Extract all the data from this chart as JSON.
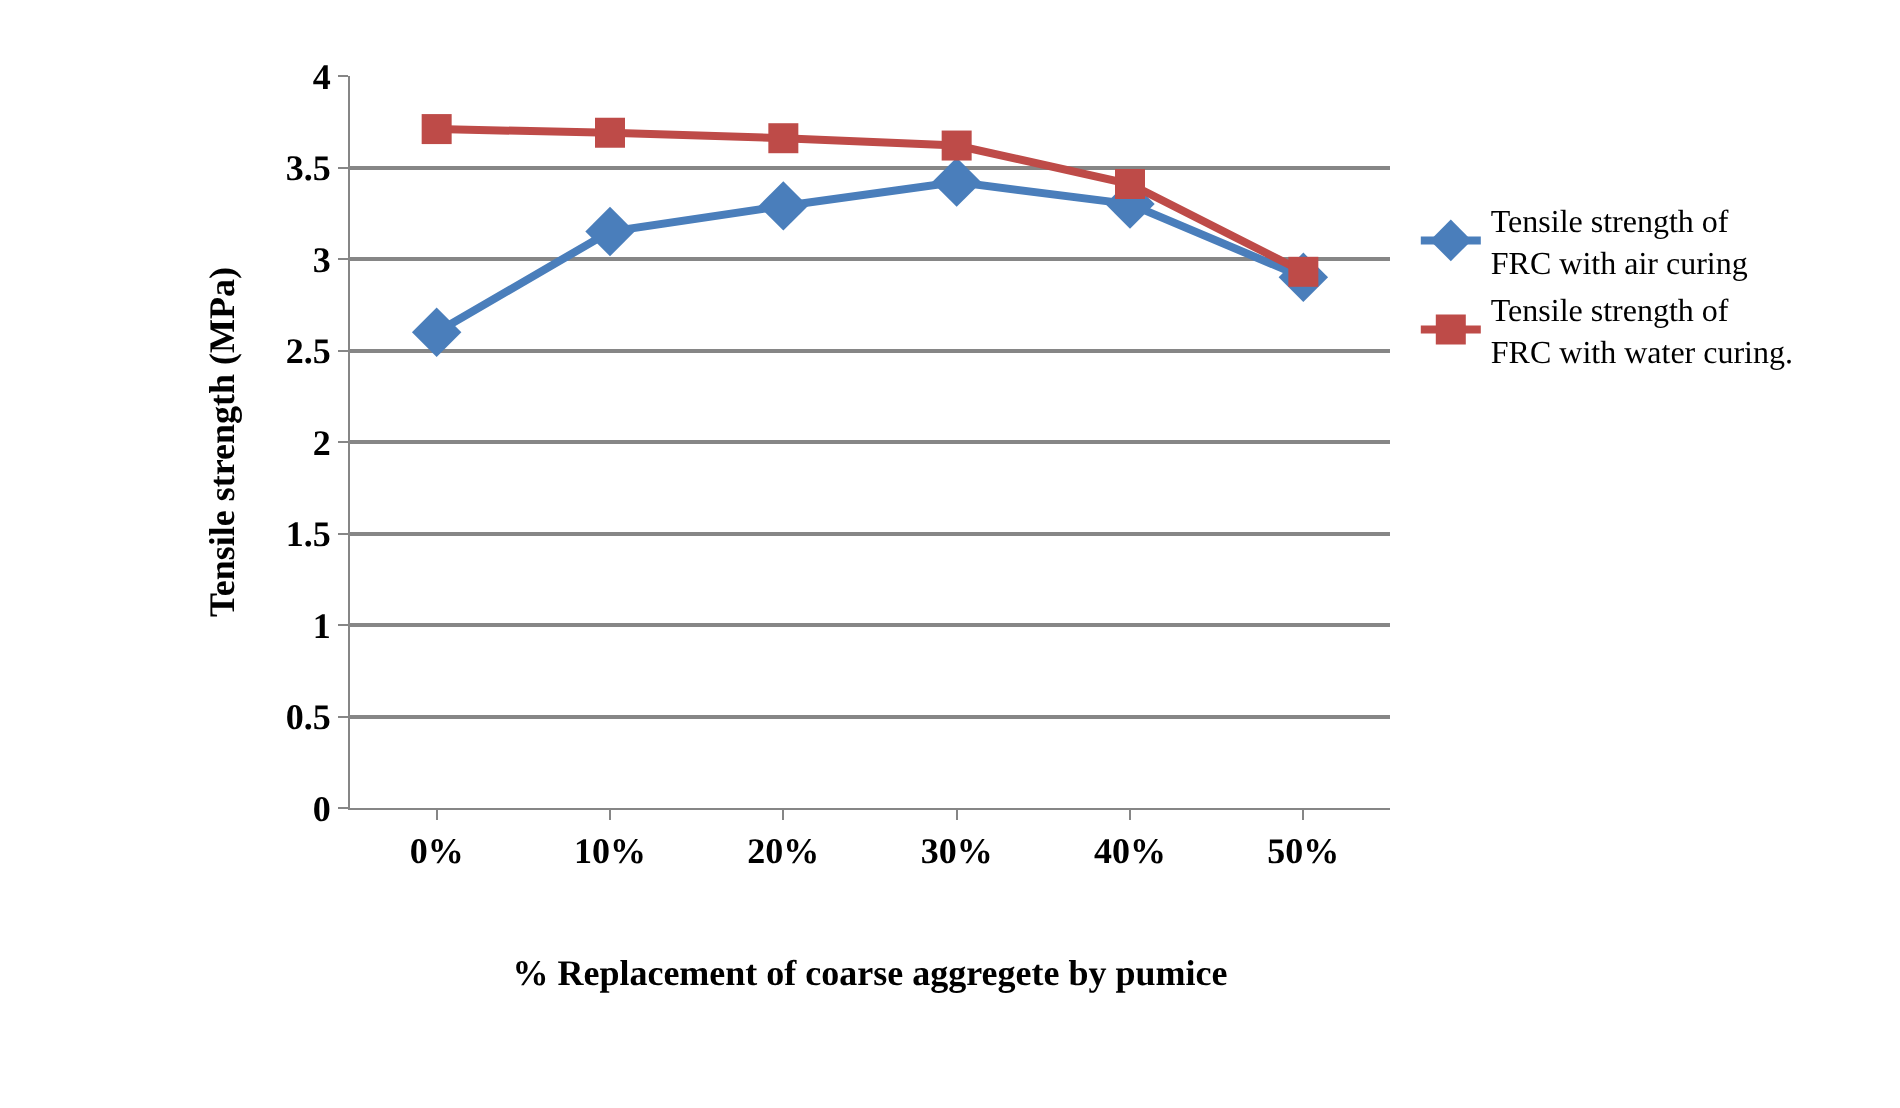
{
  "chart_data": {
    "type": "line",
    "xlabel": "% Replacement of coarse aggregete by pumice",
    "ylabel": "Tensile strength (MPa)",
    "categories": [
      "0%",
      "10%",
      "20%",
      "30%",
      "40%",
      "50%"
    ],
    "series": [
      {
        "name": "Tensile strength of FRC with air curing",
        "color": "#4a7ebb",
        "marker": "diamond",
        "values": [
          2.6,
          3.15,
          3.29,
          3.42,
          3.3,
          2.9
        ]
      },
      {
        "name": "Tensile strength of FRC with water curing.",
        "color": "#be4b48",
        "marker": "square",
        "values": [
          3.71,
          3.69,
          3.66,
          3.62,
          3.41,
          2.93
        ]
      }
    ],
    "ylim": [
      0,
      4
    ],
    "yticks": [
      0,
      0.5,
      1,
      1.5,
      2,
      2.5,
      3,
      3.5,
      4
    ],
    "grid": "y",
    "legend": "right",
    "line_style": "solid"
  }
}
